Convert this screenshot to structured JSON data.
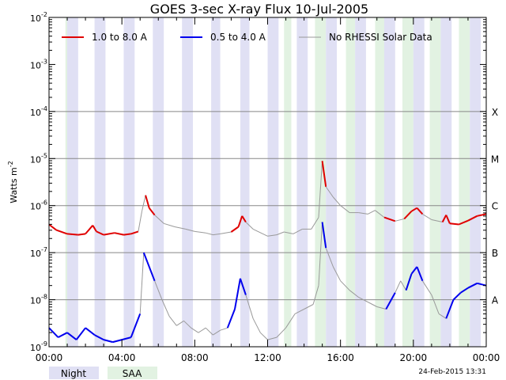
{
  "chart_data": {
    "type": "line",
    "title": "GOES 3-sec X-ray Flux   10-Jul-2005",
    "ylabel": "Watts m",
    "ylabel_sup": "-2",
    "yscale": "log",
    "ylim": [
      1e-09,
      0.01
    ],
    "y_ticks": [
      {
        "mant": "10",
        "exp": "-9",
        "value": -9
      },
      {
        "mant": "10",
        "exp": "-8",
        "value": -8
      },
      {
        "mant": "10",
        "exp": "-7",
        "value": -7
      },
      {
        "mant": "10",
        "exp": "-6",
        "value": -6
      },
      {
        "mant": "10",
        "exp": "-5",
        "value": -5
      },
      {
        "mant": "10",
        "exp": "-4",
        "value": -4
      },
      {
        "mant": "10",
        "exp": "-3",
        "value": -3
      },
      {
        "mant": "10",
        "exp": "-2",
        "value": -2
      }
    ],
    "x_ticks": [
      "00:00",
      "04:00",
      "08:00",
      "12:00",
      "16:00",
      "20:00",
      "00:00"
    ],
    "xlim_hours": [
      0,
      24
    ],
    "flare_classes": [
      {
        "label": "X",
        "value": -4
      },
      {
        "label": "M",
        "value": -5
      },
      {
        "label": "C",
        "value": -6
      },
      {
        "label": "B",
        "value": -7
      },
      {
        "label": "A",
        "value": -8
      }
    ],
    "legend": [
      {
        "label": "1.0 to 8.0 A",
        "color": "#e00000"
      },
      {
        "label": "0.5 to 4.0 A",
        "color": "#0000ee"
      },
      {
        "label": "No RHESSI Solar Data",
        "color": "#999999"
      }
    ],
    "night_intervals_hours": [
      [
        1.0,
        1.6
      ],
      [
        2.5,
        3.1
      ],
      [
        4.1,
        4.7
      ],
      [
        5.7,
        6.3
      ],
      [
        7.3,
        7.9
      ],
      [
        8.9,
        9.4
      ],
      [
        10.5,
        11.0
      ],
      [
        12.0,
        12.6
      ],
      [
        13.6,
        14.2
      ],
      [
        15.2,
        15.8
      ],
      [
        16.8,
        17.4
      ],
      [
        18.4,
        19.0
      ],
      [
        20.0,
        20.6
      ],
      [
        21.5,
        22.1
      ],
      [
        23.1,
        23.7
      ]
    ],
    "saa_intervals_hours": [
      [
        0.9,
        1.0
      ],
      [
        12.9,
        13.3
      ],
      [
        14.6,
        15.2
      ],
      [
        16.3,
        16.8
      ],
      [
        17.9,
        18.4
      ],
      [
        19.4,
        20.0
      ],
      [
        20.9,
        21.5
      ],
      [
        22.5,
        23.1
      ]
    ],
    "grid": true,
    "series": [
      {
        "name": "1.0 to 8.0 A",
        "color": "#e00000",
        "points": [
          [
            0,
            -6.4
          ],
          [
            0.4,
            -6.52
          ],
          [
            1.0,
            -6.6
          ],
          [
            1.6,
            -6.62
          ],
          [
            2.0,
            -6.6
          ],
          [
            2.4,
            -6.42
          ],
          [
            2.6,
            -6.55
          ],
          [
            3.0,
            -6.62
          ],
          [
            3.6,
            -6.58
          ],
          [
            4.1,
            -6.62
          ],
          [
            4.5,
            -6.6
          ],
          [
            4.9,
            -6.55
          ],
          [
            5.1,
            -6.12
          ],
          [
            5.3,
            -5.78
          ],
          [
            5.5,
            -6.05
          ],
          [
            5.8,
            -6.2
          ],
          [
            6.3,
            -6.38
          ],
          [
            6.9,
            -6.45
          ],
          [
            7.5,
            -6.5
          ],
          [
            8.0,
            -6.55
          ],
          [
            8.6,
            -6.58
          ],
          [
            9.0,
            -6.62
          ],
          [
            9.4,
            -6.6
          ],
          [
            10.0,
            -6.56
          ],
          [
            10.4,
            -6.45
          ],
          [
            10.6,
            -6.22
          ],
          [
            10.8,
            -6.35
          ],
          [
            11.2,
            -6.5
          ],
          [
            12.0,
            -6.65
          ],
          [
            12.5,
            -6.62
          ],
          [
            12.9,
            -6.56
          ],
          [
            13.4,
            -6.6
          ],
          [
            13.9,
            -6.5
          ],
          [
            14.4,
            -6.5
          ],
          [
            14.8,
            -6.25
          ],
          [
            15.0,
            -5.05
          ],
          [
            15.2,
            -5.6
          ],
          [
            15.6,
            -5.82
          ],
          [
            16.0,
            -6.0
          ],
          [
            16.5,
            -6.15
          ],
          [
            17.0,
            -6.15
          ],
          [
            17.5,
            -6.18
          ],
          [
            17.9,
            -6.1
          ],
          [
            18.4,
            -6.25
          ],
          [
            19.0,
            -6.33
          ],
          [
            19.5,
            -6.28
          ],
          [
            19.9,
            -6.12
          ],
          [
            20.2,
            -6.05
          ],
          [
            20.5,
            -6.18
          ],
          [
            21.0,
            -6.3
          ],
          [
            21.6,
            -6.35
          ],
          [
            21.8,
            -6.2
          ],
          [
            22.0,
            -6.38
          ],
          [
            22.5,
            -6.4
          ],
          [
            23.0,
            -6.32
          ],
          [
            23.5,
            -6.22
          ],
          [
            24.0,
            -6.18
          ]
        ]
      },
      {
        "name": "0.5 to 4.0 A",
        "color": "#0000ee",
        "points": [
          [
            0,
            -8.6
          ],
          [
            0.5,
            -8.8
          ],
          [
            1.0,
            -8.7
          ],
          [
            1.5,
            -8.85
          ],
          [
            2.0,
            -8.6
          ],
          [
            2.5,
            -8.75
          ],
          [
            3.0,
            -8.85
          ],
          [
            3.5,
            -8.9
          ],
          [
            4.0,
            -8.85
          ],
          [
            4.5,
            -8.8
          ],
          [
            5.0,
            -8.3
          ],
          [
            5.2,
            -7.0
          ],
          [
            5.4,
            -7.2
          ],
          [
            5.8,
            -7.6
          ],
          [
            6.2,
            -8.0
          ],
          [
            6.6,
            -8.35
          ],
          [
            7.0,
            -8.55
          ],
          [
            7.4,
            -8.45
          ],
          [
            7.8,
            -8.6
          ],
          [
            8.2,
            -8.7
          ],
          [
            8.6,
            -8.6
          ],
          [
            9.0,
            -8.75
          ],
          [
            9.4,
            -8.65
          ],
          [
            9.8,
            -8.6
          ],
          [
            10.2,
            -8.2
          ],
          [
            10.5,
            -7.55
          ],
          [
            10.8,
            -7.9
          ],
          [
            11.2,
            -8.4
          ],
          [
            11.6,
            -8.7
          ],
          [
            12.0,
            -8.85
          ],
          [
            12.5,
            -8.8
          ],
          [
            13.0,
            -8.6
          ],
          [
            13.5,
            -8.3
          ],
          [
            14.0,
            -8.2
          ],
          [
            14.5,
            -8.1
          ],
          [
            14.8,
            -7.7
          ],
          [
            15.0,
            -6.35
          ],
          [
            15.2,
            -6.9
          ],
          [
            15.6,
            -7.3
          ],
          [
            16.0,
            -7.6
          ],
          [
            16.5,
            -7.8
          ],
          [
            17.0,
            -7.95
          ],
          [
            17.5,
            -8.05
          ],
          [
            18.0,
            -8.15
          ],
          [
            18.5,
            -8.2
          ],
          [
            19.0,
            -7.85
          ],
          [
            19.3,
            -7.6
          ],
          [
            19.6,
            -7.8
          ],
          [
            19.9,
            -7.45
          ],
          [
            20.2,
            -7.3
          ],
          [
            20.5,
            -7.6
          ],
          [
            21.0,
            -7.9
          ],
          [
            21.4,
            -8.3
          ],
          [
            21.8,
            -8.4
          ],
          [
            22.2,
            -8.0
          ],
          [
            22.6,
            -7.85
          ],
          [
            23.0,
            -7.75
          ],
          [
            23.5,
            -7.65
          ],
          [
            24.0,
            -7.7
          ]
        ]
      }
    ]
  },
  "footer": {
    "legend_night": "Night",
    "legend_saa": "SAA",
    "timestamp": "24-Feb-2015 13:31",
    "night_color": "#e0e0f4",
    "saa_color": "#e2f2e2"
  }
}
